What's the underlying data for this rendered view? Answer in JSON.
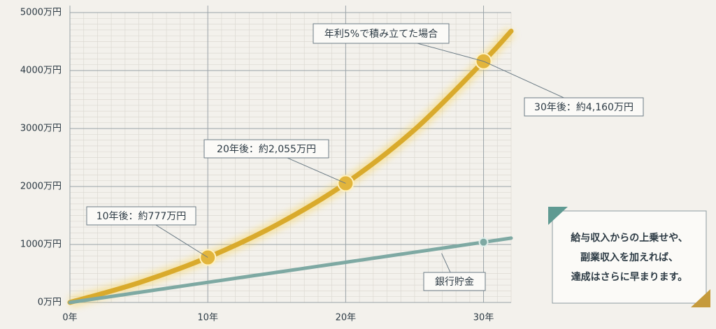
{
  "chart_data": {
    "type": "line",
    "x": [
      0,
      5,
      10,
      15,
      20,
      25,
      30,
      32
    ],
    "series": [
      {
        "name": "年利5%で積み立てた場合",
        "color": "#d9aa2c",
        "values": [
          0,
          340,
          777,
          1340,
          2055,
          2980,
          4160,
          4680
        ]
      },
      {
        "name": "銀行貯金",
        "color": "#7ea9a3",
        "values": [
          0,
          173,
          347,
          520,
          693,
          867,
          1040,
          1110
        ]
      }
    ],
    "xlim": [
      0,
      32
    ],
    "ylim": [
      0,
      5000
    ],
    "xticks": [
      {
        "value": 0,
        "label": "0年"
      },
      {
        "value": 10,
        "label": "10年"
      },
      {
        "value": 20,
        "label": "20年"
      },
      {
        "value": 30,
        "label": "30年"
      }
    ],
    "yticks": [
      {
        "value": 0,
        "label": "0万円"
      },
      {
        "value": 1000,
        "label": "1000万円"
      },
      {
        "value": 2000,
        "label": "2000万円"
      },
      {
        "value": 3000,
        "label": "3000万円"
      },
      {
        "value": 4000,
        "label": "4000万円"
      },
      {
        "value": 5000,
        "label": "5000万円"
      }
    ],
    "grid": true,
    "annotations": [
      "10年後：約777万円",
      "20年後：約2,055万円",
      "30年後：約4,160万円"
    ],
    "note": [
      "給与収入からの上乗せや、",
      "副業収入を加えれば、",
      "達成はさらに早まります。"
    ]
  }
}
